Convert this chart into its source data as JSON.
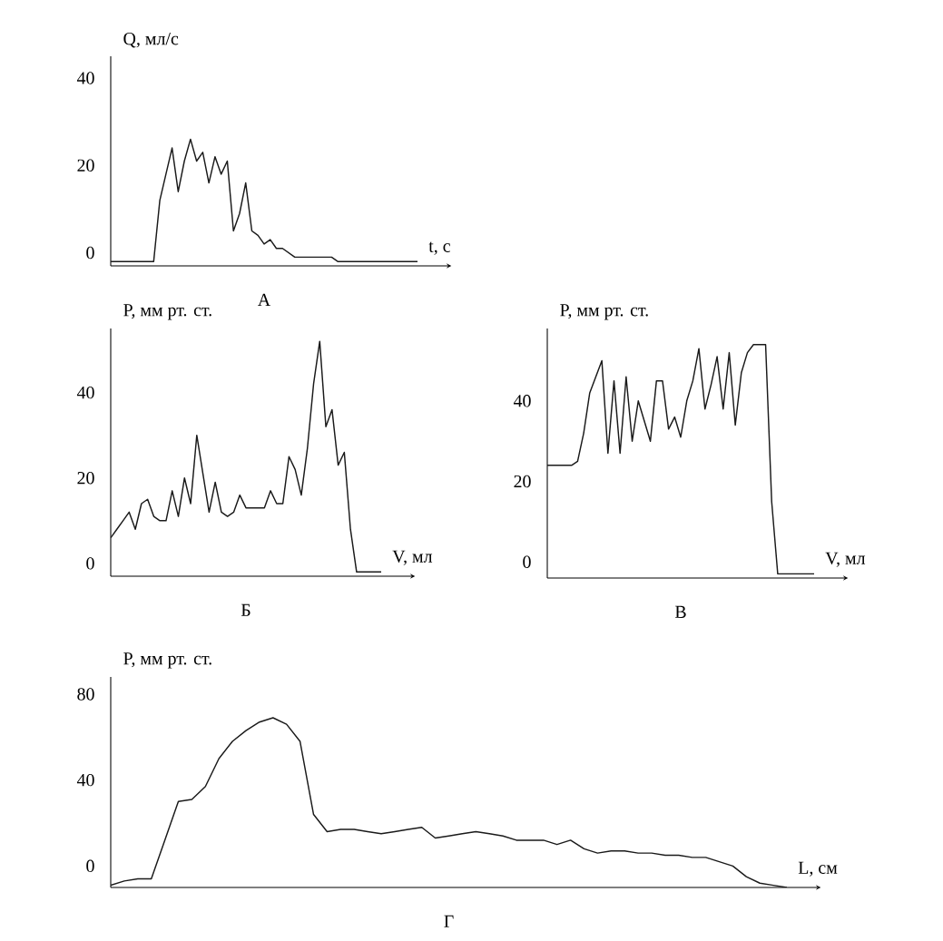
{
  "chart_data": [
    {
      "type": "line",
      "title": "А",
      "xlabel": "t,  с",
      "ylabel": "Q,  мл/с",
      "color": "#1a1a1a",
      "ylim": [
        -3,
        45
      ],
      "yticks": [
        0,
        20,
        40
      ],
      "tick_labels": "y",
      "categories": [
        null,
        null,
        null,
        null,
        null,
        null,
        null,
        null,
        null,
        null,
        null,
        null,
        null,
        null,
        null,
        null,
        null,
        null,
        null,
        null,
        null,
        null,
        null,
        null,
        null,
        null,
        null,
        null,
        null,
        null,
        null,
        null,
        null,
        null,
        null,
        null,
        null,
        null,
        null,
        null,
        null,
        null,
        null,
        null,
        null,
        null,
        null,
        null,
        null,
        null,
        null
      ],
      "values": [
        -2,
        -2,
        -2,
        -2,
        -2,
        -2,
        -2,
        -2,
        12,
        18,
        24,
        14,
        21,
        26,
        21,
        23,
        16,
        22,
        18,
        21,
        5,
        9,
        16,
        5,
        4,
        2,
        3,
        1,
        1,
        0,
        -1,
        -1,
        -1,
        -1,
        -1,
        -1,
        -1,
        -2,
        -2,
        -2,
        -2,
        -2,
        -2,
        -2,
        -2,
        -2,
        -2,
        -2,
        -2,
        -2,
        -2
      ]
    },
    {
      "type": "line",
      "title": "Б",
      "xlabel": "V,  мл",
      "ylabel": "P,  мм  рт.  ст.",
      "color": "#1a1a1a",
      "ylim": [
        -3,
        55
      ],
      "yticks": [
        0,
        20,
        40
      ],
      "tick_labels": "y",
      "categories": [
        null,
        null,
        null,
        null,
        null,
        null,
        null,
        null,
        null,
        null,
        null,
        null,
        null,
        null,
        null,
        null,
        null,
        null,
        null,
        null,
        null,
        null,
        null,
        null,
        null,
        null,
        null,
        null,
        null,
        null,
        null,
        null,
        null,
        null,
        null,
        null,
        null,
        null,
        null,
        null,
        null,
        null,
        null,
        null,
        null
      ],
      "values": [
        6,
        8,
        10,
        12,
        8,
        14,
        15,
        11,
        10,
        10,
        17,
        11,
        20,
        14,
        30,
        21,
        12,
        19,
        12,
        11,
        12,
        16,
        13,
        13,
        13,
        13,
        17,
        14,
        14,
        25,
        22,
        16,
        27,
        42,
        52,
        32,
        36,
        23,
        26,
        8,
        -2,
        -2,
        -2,
        -2,
        -2
      ]
    },
    {
      "type": "line",
      "title": "В",
      "xlabel": "V,  мл",
      "ylabel": "P,  мм  рт.  ст.",
      "color": "#1a1a1a",
      "ylim": [
        -4,
        58
      ],
      "yticks": [
        0,
        20,
        40
      ],
      "tick_labels": "y",
      "categories": [
        null,
        null,
        null,
        null,
        null,
        null,
        null,
        null,
        null,
        null,
        null,
        null,
        null,
        null,
        null,
        null,
        null,
        null,
        null,
        null,
        null,
        null,
        null,
        null,
        null,
        null,
        null,
        null,
        null,
        null,
        null,
        null,
        null,
        null,
        null,
        null,
        null,
        null,
        null,
        null,
        null,
        null,
        null,
        null,
        null
      ],
      "values": [
        24,
        24,
        24,
        24,
        24,
        25,
        32,
        42,
        46,
        50,
        27,
        45,
        27,
        46,
        30,
        40,
        35,
        30,
        45,
        45,
        33,
        36,
        31,
        40,
        45,
        53,
        38,
        44,
        51,
        38,
        52,
        34,
        47,
        52,
        54,
        54,
        54,
        15,
        -3,
        -3,
        -3,
        -3,
        -3,
        -3,
        -3
      ]
    },
    {
      "type": "line",
      "title": "Г",
      "xlabel": "L,  см",
      "ylabel": "P,  мм  рт.  ст.",
      "color": "#1a1a1a",
      "ylim": [
        -10,
        88
      ],
      "yticks": [
        0,
        40,
        80
      ],
      "tick_labels": "y",
      "categories": [
        null,
        null,
        null,
        null,
        null,
        null,
        null,
        null,
        null,
        null,
        null,
        null,
        null,
        null,
        null,
        null,
        null,
        null,
        null,
        null,
        null,
        null,
        null,
        null,
        null,
        null,
        null,
        null,
        null,
        null,
        null,
        null,
        null,
        null,
        null,
        null,
        null,
        null,
        null,
        null,
        null,
        null,
        null,
        null,
        null,
        null,
        null,
        null,
        null,
        null,
        null
      ],
      "values": [
        -9,
        -7,
        -6,
        -6,
        12,
        30,
        31,
        37,
        50,
        58,
        63,
        67,
        69,
        66,
        58,
        24,
        16,
        17,
        17,
        16,
        15,
        16,
        17,
        18,
        13,
        14,
        15,
        16,
        15,
        14,
        12,
        12,
        12,
        10,
        12,
        8,
        6,
        7,
        7,
        6,
        6,
        5,
        5,
        4,
        4,
        2,
        0,
        -5,
        -8,
        -9,
        -10
      ]
    }
  ]
}
